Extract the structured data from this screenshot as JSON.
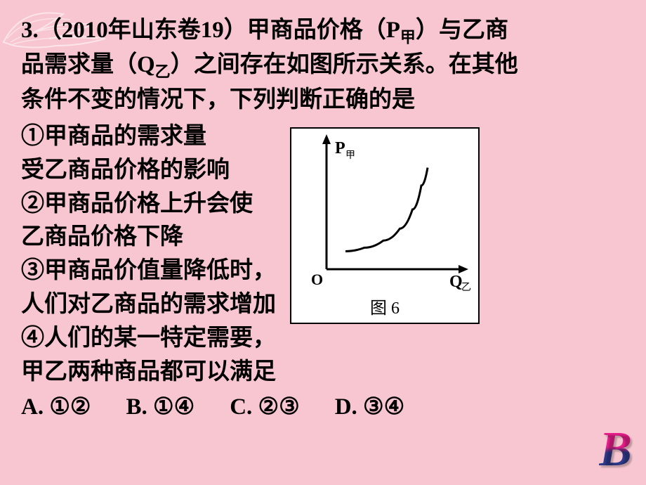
{
  "question": {
    "number": "3.",
    "source": "（2010年山东卷19）",
    "stem_line1": "甲商品价格（P",
    "stem_sub1": "甲",
    "stem_line2": "）与乙商",
    "stem_line3": "品需求量（Q",
    "stem_sub2": "乙",
    "stem_line4": "）之间存在如图所示关系。在其他",
    "stem_line5": "条件不变的情况下，下列判断正确的是"
  },
  "statements": {
    "s1a": "①甲商品的需求量",
    "s1b": "受乙商品价格的影响",
    "s2a": "②甲商品价格上升会使",
    "s2b": "乙商品价格下降",
    "s3a": "③甲商品价值量降低时，",
    "s3b": "人们对乙商品的需求增加",
    "s4a": "④人们的某一特定需要，",
    "s4b": "甲乙两种商品都可以满足"
  },
  "options": {
    "a": "A. ①②",
    "b": "B. ①④",
    "c": "C. ②③",
    "d": "D. ③④"
  },
  "chart": {
    "type": "line",
    "caption": "图 6",
    "y_label": "P",
    "y_label_sub": "甲",
    "x_label": "Q",
    "x_label_sub": "乙",
    "origin_label": "O",
    "background_color": "#ffffff",
    "border_color": "#000000",
    "axis_color": "#000000",
    "curve_color": "#000000",
    "axis_stroke_width": 3,
    "curve_stroke_width": 3,
    "xlim": [
      0,
      10
    ],
    "ylim": [
      0,
      10
    ],
    "curve_points": [
      [
        1.5,
        1.5
      ],
      [
        3.0,
        1.8
      ],
      [
        4.5,
        2.4
      ],
      [
        5.8,
        3.4
      ],
      [
        6.8,
        5.0
      ],
      [
        7.5,
        7.0
      ],
      [
        8.0,
        8.5
      ]
    ]
  },
  "answer": "B",
  "colors": {
    "page_bg": "#f8c6d0",
    "text": "#000000",
    "answer_top": "#e91e8c",
    "answer_bottom": "#2e3a8c",
    "wing": "#ffffff"
  }
}
